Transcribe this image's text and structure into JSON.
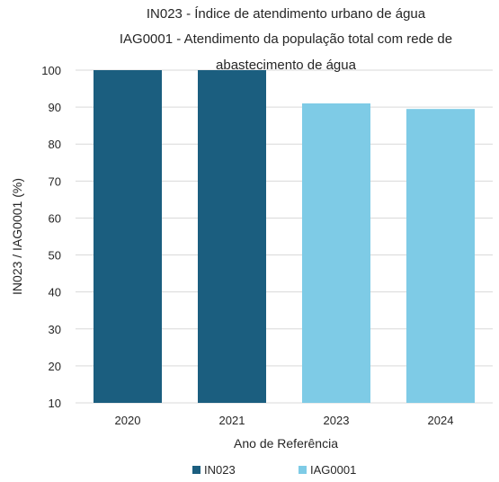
{
  "chart_data": {
    "type": "bar",
    "title_lines": [
      "IN023 - Índice de atendimento urbano de água",
      "IAG0001 - Atendimento da população total com rede de",
      "abastecimento de água"
    ],
    "xlabel": "Ano de Referência",
    "ylabel": "IN023 / IAG0001  (%)",
    "ylim": [
      10,
      100
    ],
    "yticks": [
      "100",
      "90",
      "80",
      "70",
      "60",
      "50",
      "40",
      "30",
      "20",
      "10"
    ],
    "categories": [
      "2020",
      "2021",
      "2023",
      "2024"
    ],
    "series": [
      {
        "name": "IN023",
        "color": "#1b5e7f",
        "values": [
          100,
          100,
          null,
          null
        ]
      },
      {
        "name": "IAG0001",
        "color": "#7ecbe6",
        "values": [
          null,
          null,
          91,
          89.5
        ]
      }
    ],
    "grid": true,
    "legend": "bottom"
  }
}
